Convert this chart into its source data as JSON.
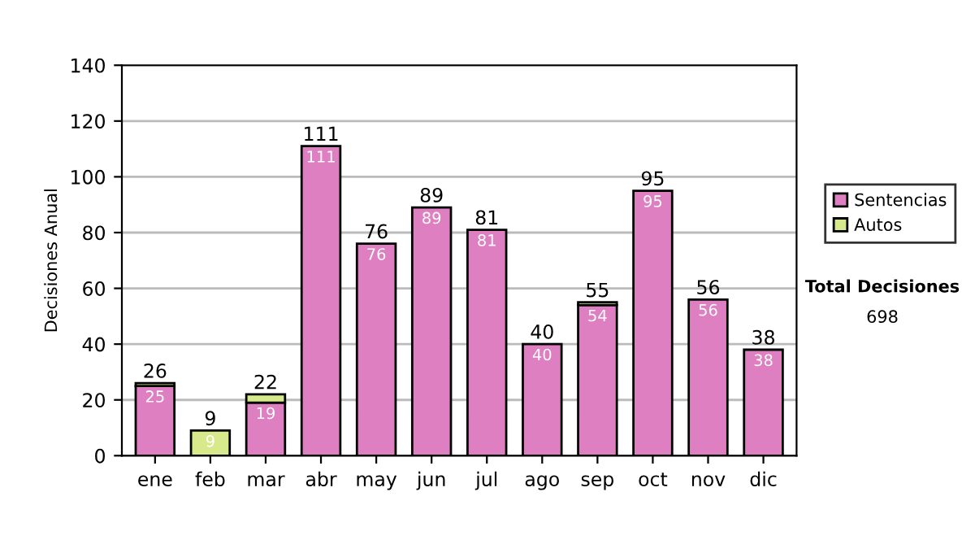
{
  "chart_data": {
    "type": "bar",
    "stacked": true,
    "ylabel": "Decisiones Anual",
    "categories": [
      "ene",
      "feb",
      "mar",
      "abr",
      "may",
      "jun",
      "jul",
      "ago",
      "sep",
      "oct",
      "nov",
      "dic"
    ],
    "series": [
      {
        "name": "Sentencias",
        "color": "#dd7fc0",
        "values": [
          25,
          0,
          19,
          111,
          76,
          89,
          81,
          40,
          54,
          95,
          56,
          38
        ],
        "value_labels": [
          "25",
          null,
          "19",
          "111",
          "76",
          "89",
          "81",
          "40",
          "54",
          "95",
          "56",
          "38"
        ]
      },
      {
        "name": "Autos",
        "color": "#d6ea8c",
        "values": [
          1,
          9,
          3,
          null,
          null,
          null,
          null,
          null,
          1,
          null,
          null,
          null
        ],
        "value_labels": [
          null,
          "9",
          null,
          null,
          null,
          null,
          null,
          null,
          null,
          null,
          null,
          null
        ]
      }
    ],
    "totals": [
      "26",
      "9",
      "22",
      "111",
      "76",
      "89",
      "81",
      "40",
      "55",
      "95",
      "56",
      "38"
    ],
    "ylim": [
      0,
      140
    ],
    "yticks": [
      0,
      20,
      40,
      60,
      80,
      100,
      120,
      140
    ],
    "grid": "y",
    "legend": "right",
    "annotations": [
      "Total Decisiones",
      "698"
    ]
  }
}
